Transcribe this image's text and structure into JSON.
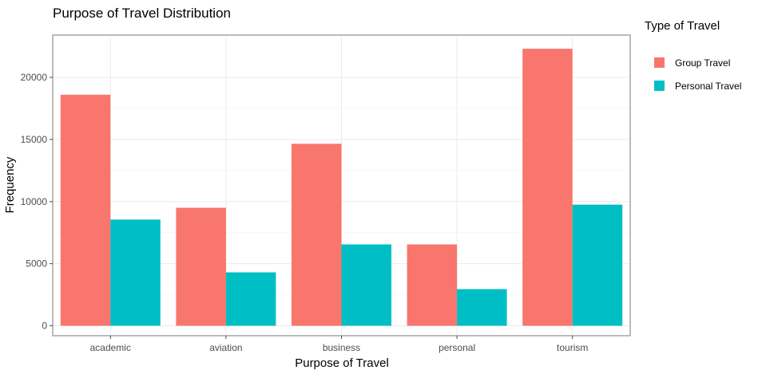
{
  "chart_data": {
    "type": "bar",
    "title": "Purpose of Travel Distribution",
    "xlabel": "Purpose of Travel",
    "ylabel": "Frequency",
    "categories": [
      "academic",
      "aviation",
      "business",
      "personal",
      "tourism"
    ],
    "series": [
      {
        "name": "Group Travel",
        "color": "#F8766D",
        "values": [
          18600,
          9500,
          14650,
          6550,
          22300
        ]
      },
      {
        "name": "Personal Travel",
        "color": "#00BFC4",
        "values": [
          8550,
          4300,
          6550,
          2950,
          9750
        ]
      }
    ],
    "yticks": [
      0,
      5000,
      10000,
      15000,
      20000
    ],
    "ylim": [
      -800,
      23400
    ],
    "grid": true,
    "legend": {
      "title": "Type of Travel",
      "placement": "right"
    }
  }
}
